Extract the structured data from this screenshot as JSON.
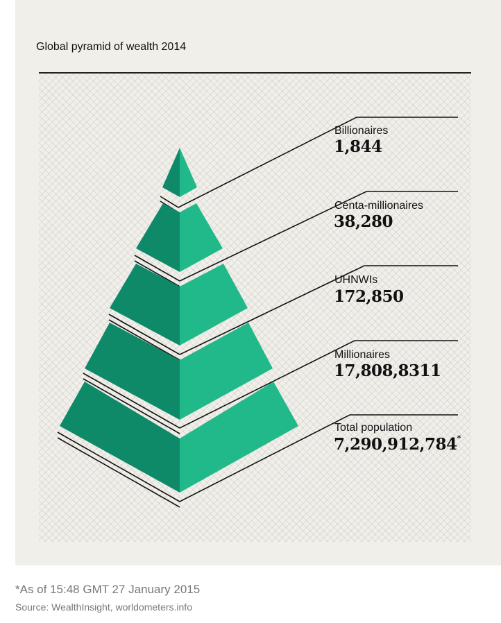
{
  "title": "Global pyramid of wealth 2014",
  "colors": {
    "dark_green": "#0e8a68",
    "light_green": "#22b98a",
    "line": "#111111",
    "background": "#f1efea"
  },
  "tiers": [
    {
      "name": "Billionaires",
      "value": "1,844",
      "note": ""
    },
    {
      "name": "Centa-millionaires",
      "value": "38,280",
      "note": ""
    },
    {
      "name": "UHNWIs",
      "value": "172,850",
      "note": ""
    },
    {
      "name": "Millionaires",
      "value": "17,808,8311",
      "note": ""
    },
    {
      "name": "Total population",
      "value": "7,290,912,784",
      "note": "*"
    }
  ],
  "footnote": "*As of 15:48 GMT 27 January 2015",
  "source": "Source: WealthInsight, worldometers.info"
}
